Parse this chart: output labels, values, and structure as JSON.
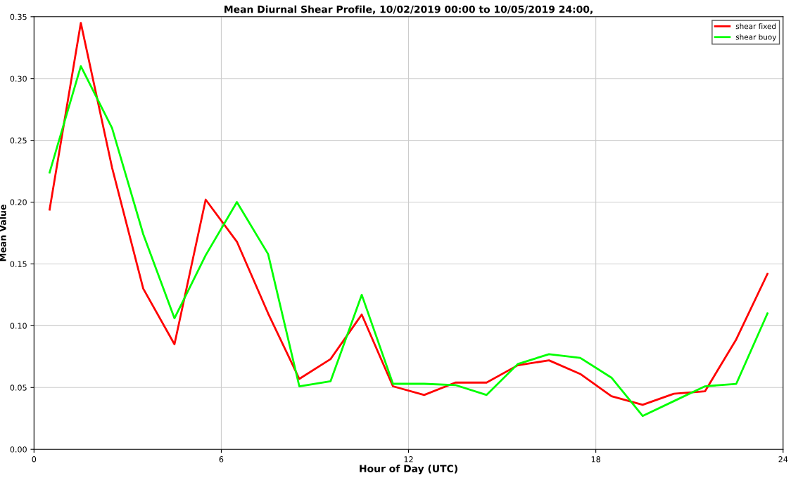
{
  "chart_data": {
    "type": "line",
    "title": "Mean Diurnal Shear Profile, 10/02/2019 00:00 to 10/05/2019 24:00,",
    "xlabel": "Hour of Day (UTC)",
    "ylabel": "Mean Value",
    "x": [
      0.5,
      1.5,
      2.5,
      3.5,
      4.5,
      5.5,
      6.5,
      7.5,
      8.5,
      9.5,
      10.5,
      11.5,
      12.5,
      13.5,
      14.5,
      15.5,
      16.5,
      17.5,
      18.5,
      19.5,
      20.5,
      21.5,
      22.5,
      23.5
    ],
    "series": [
      {
        "name": "shear fixed",
        "color": "#ff0000",
        "values": [
          0.194,
          0.345,
          0.228,
          0.13,
          0.085,
          0.202,
          0.168,
          0.11,
          0.057,
          0.073,
          0.109,
          0.051,
          0.044,
          0.054,
          0.054,
          0.068,
          0.072,
          0.061,
          0.043,
          0.036,
          0.045,
          0.047,
          0.089,
          0.142
        ]
      },
      {
        "name": "shear buoy",
        "color": "#00ff00",
        "values": [
          0.224,
          0.31,
          0.26,
          0.174,
          0.106,
          0.157,
          0.2,
          0.158,
          0.051,
          0.055,
          0.125,
          0.053,
          0.053,
          0.052,
          0.044,
          0.069,
          0.077,
          0.074,
          0.058,
          0.027,
          0.039,
          0.051,
          0.053,
          0.11
        ]
      }
    ],
    "xlim": [
      0,
      24
    ],
    "xticks": [
      0,
      6,
      12,
      18,
      24
    ],
    "ylim": [
      0,
      0.35
    ],
    "yticks": [
      {
        "value": 0,
        "label": "0.00"
      },
      {
        "value": 0.05,
        "label": "0.05"
      },
      {
        "value": 0.1,
        "label": "0.10"
      },
      {
        "value": 0.15,
        "label": "0.15"
      },
      {
        "value": 0.2,
        "label": "0.20"
      },
      {
        "value": 0.25,
        "label": "0.25"
      },
      {
        "value": 0.3,
        "label": "0.30"
      },
      {
        "value": 0.35,
        "label": "0.35"
      }
    ],
    "grid": true,
    "legend": "top right",
    "marker": "none",
    "line_style": "solid"
  }
}
